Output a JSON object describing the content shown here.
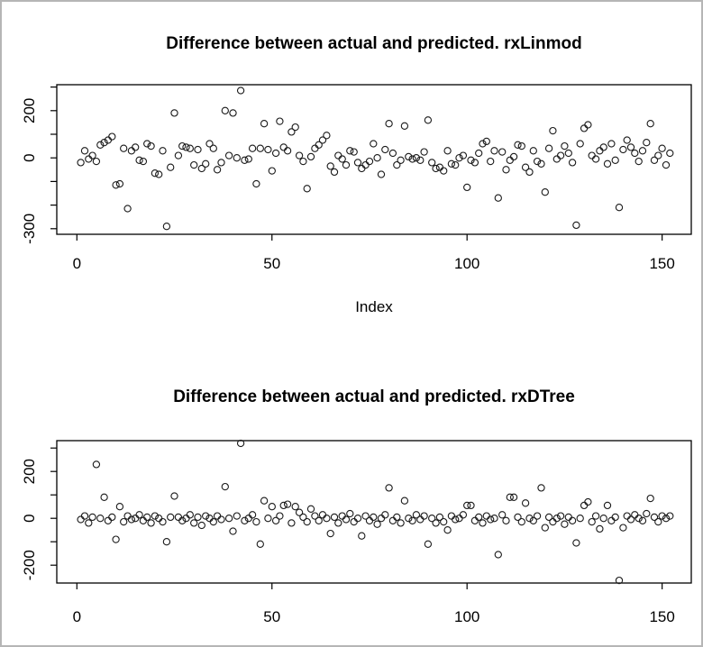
{
  "page": {
    "background_color": "#ffffff",
    "border_color": "#b6b6b6",
    "point_color": "#1a1a1a",
    "axis_color": "#000000"
  },
  "chart_data": [
    {
      "type": "scatter",
      "title": "Difference between actual and predicted. rxLinmod",
      "xlabel": "Index",
      "ylabel": "",
      "marker": "open-circle",
      "grid": false,
      "x_range_of_index": [
        1,
        152
      ],
      "xlim": [
        -5,
        157.5
      ],
      "ylim": [
        -324,
        310
      ],
      "x_axis": {
        "ticks": [
          0,
          50,
          100,
          150
        ],
        "tick_labels": [
          "0",
          "50",
          "100",
          "150"
        ]
      },
      "y_axis": {
        "ticks": [
          300,
          200,
          100,
          0,
          -100,
          -200,
          -300
        ],
        "tick_labels": [
          "",
          "200",
          "",
          "0",
          "",
          "",
          "-300"
        ]
      },
      "values": [
        -20,
        30,
        -5,
        10,
        -15,
        55,
        65,
        75,
        90,
        -115,
        -110,
        40,
        -215,
        30,
        45,
        -10,
        -15,
        60,
        50,
        -65,
        -70,
        30,
        -290,
        -40,
        190,
        10,
        50,
        45,
        40,
        -30,
        35,
        -45,
        -25,
        60,
        40,
        -50,
        -20,
        200,
        10,
        190,
        0,
        285,
        -10,
        -5,
        40,
        -110,
        40,
        145,
        35,
        -55,
        20,
        155,
        45,
        30,
        110,
        130,
        10,
        -15,
        -130,
        5,
        40,
        55,
        75,
        95,
        -35,
        -60,
        10,
        -5,
        -30,
        30,
        25,
        -20,
        -45,
        -30,
        -15,
        60,
        0,
        -70,
        35,
        145,
        20,
        -30,
        -10,
        135,
        5,
        -5,
        0,
        -10,
        25,
        160,
        -20,
        -45,
        -40,
        -55,
        30,
        -25,
        -30,
        0,
        10,
        -125,
        -10,
        -20,
        20,
        60,
        70,
        -15,
        30,
        -170,
        25,
        -50,
        -10,
        5,
        55,
        50,
        -40,
        -60,
        30,
        -15,
        -25,
        -145,
        40,
        115,
        -5,
        10,
        50,
        20,
        -20,
        -285,
        60,
        125,
        140,
        10,
        -5,
        30,
        45,
        -25,
        60,
        -10,
        -210,
        35,
        75,
        45,
        20,
        -15,
        30,
        65,
        145,
        -10,
        10,
        40,
        -30,
        20
      ]
    },
    {
      "type": "scatter",
      "title": "Difference between actual and predicted. rxDTree",
      "xlabel": "",
      "ylabel": "",
      "marker": "open-circle",
      "grid": false,
      "x_range_of_index": [
        1,
        152
      ],
      "xlim": [
        -5,
        157.5
      ],
      "ylim": [
        -276,
        331
      ],
      "x_axis": {
        "ticks": [
          0,
          50,
          100,
          150
        ],
        "tick_labels": [
          "0",
          "50",
          "100",
          "150"
        ]
      },
      "y_axis": {
        "ticks": [
          300,
          200,
          100,
          0,
          -100,
          -200
        ],
        "tick_labels": [
          "",
          "200",
          "",
          "0",
          "",
          "-200"
        ]
      },
      "values": [
        -5,
        10,
        -20,
        5,
        230,
        0,
        90,
        -10,
        5,
        -90,
        50,
        -15,
        10,
        -5,
        0,
        15,
        -10,
        5,
        -20,
        10,
        0,
        -15,
        -100,
        5,
        95,
        5,
        -10,
        0,
        15,
        -20,
        5,
        -30,
        10,
        0,
        -15,
        10,
        -5,
        135,
        0,
        -55,
        10,
        320,
        -10,
        0,
        15,
        -15,
        -110,
        75,
        0,
        50,
        -10,
        10,
        55,
        60,
        -20,
        50,
        25,
        5,
        -15,
        40,
        10,
        -10,
        15,
        0,
        -65,
        5,
        -20,
        10,
        -5,
        20,
        -15,
        0,
        -75,
        10,
        -10,
        5,
        -25,
        0,
        15,
        130,
        -10,
        5,
        -20,
        75,
        0,
        -10,
        15,
        -5,
        10,
        -110,
        0,
        -20,
        5,
        -15,
        -50,
        10,
        -5,
        0,
        15,
        55,
        55,
        -10,
        5,
        -20,
        10,
        -5,
        0,
        -155,
        15,
        -10,
        90,
        90,
        5,
        -15,
        65,
        0,
        -10,
        10,
        130,
        -40,
        5,
        -15,
        0,
        10,
        -25,
        5,
        -10,
        -105,
        0,
        55,
        70,
        -15,
        10,
        -45,
        0,
        55,
        -10,
        5,
        -265,
        -40,
        10,
        -5,
        15,
        0,
        -10,
        20,
        85,
        5,
        -15,
        10,
        0,
        10
      ]
    }
  ]
}
